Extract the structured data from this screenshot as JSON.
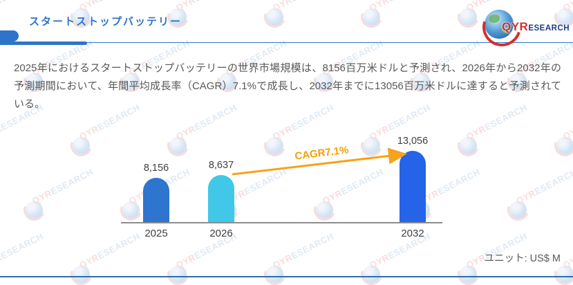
{
  "header": {
    "title": "スタートストップバッテリー",
    "logo": {
      "qyr": "QYR",
      "esearch": "ESEARCH"
    }
  },
  "summary": {
    "text": "2025年におけるスタートストップバッテリーの世界市場規模は、8156百万米ドルと予測され、2026年から2032年の予測期間において、年間平均成長率（CAGR）7.1%で成長し、2032年までに13056百万米ドルに達すると予測されている。"
  },
  "chart_data": {
    "type": "bar",
    "categories": [
      "2025",
      "2026",
      "2032"
    ],
    "values": [
      8156,
      8637,
      13056
    ],
    "value_labels": [
      "8,156",
      "8,637",
      "13,056"
    ],
    "bar_colors": [
      "#2e75d0",
      "#41c7e8",
      "#2563e8"
    ],
    "annotation": "CAGR7.1%",
    "annotation_color": "#f5a000",
    "arrow_color": "#f7a21b",
    "unit_label": "ユニット: US$ M",
    "title": "",
    "xlabel": "",
    "ylabel": "",
    "ylim": [
      0,
      13056
    ],
    "grid": false,
    "legend": "none"
  },
  "watermark": {
    "qyr": "QYR",
    "esearch": "ESEARCH"
  },
  "colors": {
    "accent_blue": "#2e74c9",
    "footer_blue": "#2f6da8",
    "text_gray": "#595959",
    "label_gray": "#404040",
    "axis_gray": "#8c8c8c"
  }
}
